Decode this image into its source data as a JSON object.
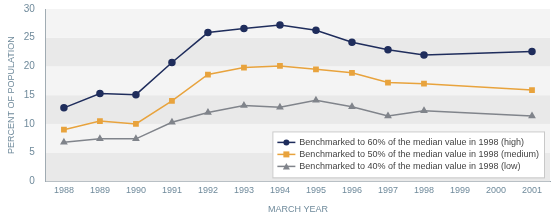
{
  "chart_data": {
    "type": "line",
    "x_label": "MARCH YEAR",
    "y_label": "PERCENT OF POPULATION",
    "categories": [
      "1988",
      "1989",
      "1990",
      "1991",
      "1992",
      "1993",
      "1994",
      "1995",
      "1996",
      "1997",
      "1998",
      "1999",
      "2000",
      "2001"
    ],
    "series": [
      {
        "name": "Benchmarked to 60% of the median value in 1998 (high)",
        "color": "#1f2d5c",
        "marker": "circle",
        "values": [
          12.8,
          15.3,
          15.1,
          20.7,
          25.9,
          26.6,
          27.2,
          26.3,
          24.2,
          22.9,
          22.0,
          null,
          null,
          22.6
        ]
      },
      {
        "name": "Benchmarked to 50% of the median value in 1998 (medium)",
        "color": "#e8a33d",
        "marker": "square",
        "values": [
          9.0,
          10.5,
          10.0,
          14.0,
          18.6,
          19.8,
          20.1,
          19.5,
          18.9,
          17.2,
          17.0,
          null,
          null,
          15.9
        ]
      },
      {
        "name": "Benchmarked to 40% of the median value in 1998 (low)",
        "color": "#80848b",
        "marker": "triangle",
        "values": [
          6.8,
          7.4,
          7.4,
          10.3,
          12.0,
          13.2,
          12.9,
          14.1,
          13.0,
          11.4,
          12.3,
          null,
          null,
          11.4
        ]
      }
    ],
    "ylim": [
      0,
      30
    ],
    "yticks": [
      0,
      5,
      10,
      15,
      20,
      25,
      30
    ],
    "grid": true,
    "legend": "lower right"
  }
}
